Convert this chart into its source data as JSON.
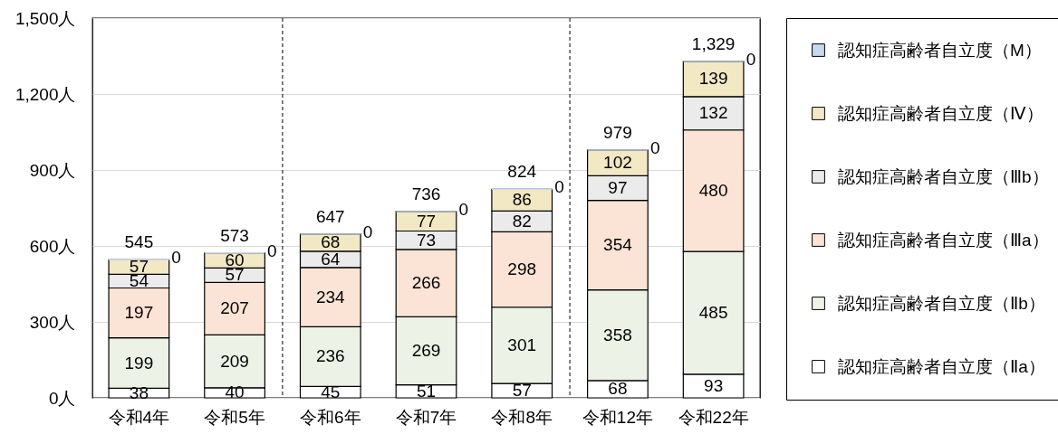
{
  "chart_data": {
    "type": "bar",
    "stacked": true,
    "categories": [
      "令和4年",
      "令和5年",
      "令和6年",
      "令和7年",
      "令和8年",
      "令和12年",
      "令和22年"
    ],
    "series": [
      {
        "name": "認知症高齢者自立度（Ⅱa）",
        "color": "#ffffff",
        "values": [
          38,
          40,
          45,
          51,
          57,
          68,
          93
        ]
      },
      {
        "name": "認知症高齢者自立度（Ⅱb）",
        "color": "#edf2e6",
        "values": [
          199,
          209,
          236,
          269,
          301,
          358,
          485
        ]
      },
      {
        "name": "認知症高齢者自立度（Ⅲa）",
        "color": "#fbe4d5",
        "values": [
          197,
          207,
          234,
          266,
          298,
          354,
          480
        ]
      },
      {
        "name": "認知症高齢者自立度（Ⅲb）",
        "color": "#ebebeb",
        "values": [
          54,
          57,
          64,
          73,
          82,
          97,
          132
        ]
      },
      {
        "name": "認知症高齢者自立度（Ⅳ）",
        "color": "#f2e8c4",
        "values": [
          57,
          60,
          68,
          77,
          86,
          102,
          139
        ]
      },
      {
        "name": "認知症高齢者自立度（M）",
        "color": "#c5d9ef",
        "values": [
          0,
          0,
          0,
          0,
          0,
          0,
          0
        ]
      }
    ],
    "ylim": [
      0,
      1500
    ],
    "yticks": [
      {
        "value": 0,
        "label": "0人"
      },
      {
        "value": 300,
        "label": "300人"
      },
      {
        "value": 600,
        "label": "600人"
      },
      {
        "value": 900,
        "label": "900人"
      },
      {
        "value": 1200,
        "label": "1,200人"
      },
      {
        "value": 1500,
        "label": "1,500人"
      }
    ],
    "grid": "y",
    "legend": "right",
    "data_labels": true,
    "totals": [
      "545",
      "573",
      "647",
      "736",
      "824",
      "979",
      "1,329"
    ]
  }
}
